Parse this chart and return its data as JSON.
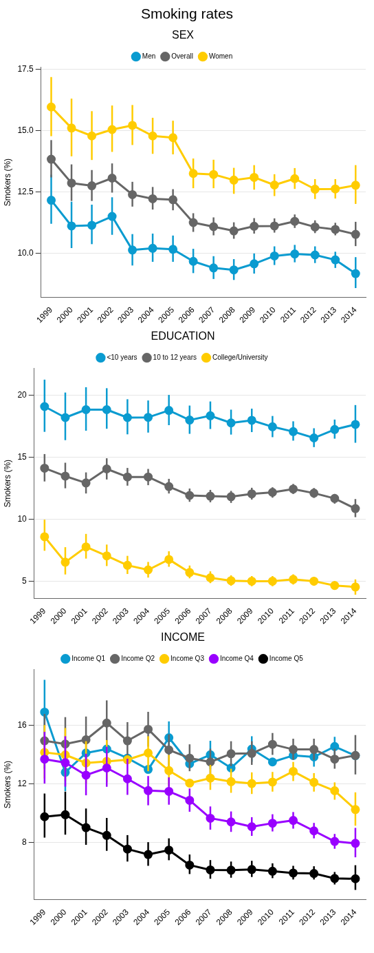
{
  "chart_data": [
    {
      "type": "line",
      "title": "Smoking rates",
      "subtitle": "SEX",
      "ylabel": "Smokers (%)",
      "categories": [
        "1999",
        "2000",
        "2001",
        "2002",
        "2003",
        "2004",
        "2005",
        "2006",
        "2007",
        "2008",
        "2009",
        "2010",
        "2011",
        "2012",
        "2013",
        "2014"
      ],
      "ylim": [
        8.2,
        17.6
      ],
      "yticks": [
        {
          "value": 10,
          "label": "10.0"
        },
        {
          "value": 12.5,
          "label": "12.5"
        },
        {
          "value": 15,
          "label": "15.0"
        },
        {
          "value": 17.5,
          "label": "17.5"
        }
      ],
      "grid": "y",
      "legend": "top",
      "marker": "circle",
      "series": [
        {
          "name": "Men",
          "color": "#0a9bd0",
          "values": [
            12.17,
            11.12,
            11.15,
            11.51,
            10.14,
            10.21,
            10.17,
            9.68,
            9.41,
            9.33,
            9.58,
            9.9,
            9.98,
            9.94,
            9.74,
            9.18
          ],
          "errors": [
            [
              11.21,
              13.21
            ],
            [
              10.22,
              12.11
            ],
            [
              10.38,
              11.99
            ],
            [
              10.76,
              12.29
            ],
            [
              9.51,
              10.79
            ],
            [
              9.66,
              10.81
            ],
            [
              9.66,
              10.73
            ],
            [
              9.2,
              10.19
            ],
            [
              8.96,
              9.89
            ],
            [
              8.92,
              9.77
            ],
            [
              9.18,
              10.0
            ],
            [
              9.53,
              10.29
            ],
            [
              9.64,
              10.35
            ],
            [
              9.61,
              10.29
            ],
            [
              9.41,
              10.07
            ],
            [
              8.59,
              9.85
            ]
          ]
        },
        {
          "name": "Overall",
          "color": "#666666",
          "values": [
            13.84,
            12.87,
            12.76,
            13.07,
            12.4,
            12.23,
            12.19,
            11.26,
            11.09,
            10.92,
            11.11,
            11.12,
            11.31,
            11.08,
            10.98,
            10.78
          ],
          "errors": [
            [
              13.1,
              14.62
            ],
            [
              12.14,
              13.63
            ],
            [
              12.14,
              13.4
            ],
            [
              12.48,
              13.67
            ],
            [
              11.91,
              12.92
            ],
            [
              11.79,
              12.71
            ],
            [
              11.76,
              12.62
            ],
            [
              10.88,
              11.64
            ],
            [
              10.74,
              11.47
            ],
            [
              10.6,
              11.27
            ],
            [
              10.81,
              11.44
            ],
            [
              10.85,
              11.43
            ],
            [
              11.04,
              11.59
            ],
            [
              10.83,
              11.35
            ],
            [
              10.74,
              11.25
            ],
            [
              10.3,
              11.29
            ]
          ]
        },
        {
          "name": "Women",
          "color": "#ffcc00",
          "values": [
            15.97,
            15.11,
            14.79,
            15.05,
            15.22,
            14.79,
            14.72,
            13.26,
            13.22,
            12.99,
            13.1,
            12.79,
            13.05,
            12.62,
            12.63,
            12.78
          ],
          "errors": [
            [
              14.78,
              17.19
            ],
            [
              13.96,
              16.31
            ],
            [
              13.81,
              15.8
            ],
            [
              14.14,
              16.03
            ],
            [
              14.42,
              16.05
            ],
            [
              14.06,
              15.53
            ],
            [
              14.04,
              15.41
            ],
            [
              12.66,
              13.87
            ],
            [
              12.66,
              13.82
            ],
            [
              12.43,
              13.49
            ],
            [
              12.6,
              13.6
            ],
            [
              12.34,
              13.23
            ],
            [
              12.63,
              13.48
            ],
            [
              12.22,
              13.03
            ],
            [
              12.24,
              13.03
            ],
            [
              12.02,
              13.6
            ]
          ]
        }
      ]
    },
    {
      "type": "line",
      "title": "EDUCATION",
      "ylabel": "Smokers (%)",
      "categories": [
        "1999",
        "2000",
        "2001",
        "2002",
        "2003",
        "2004",
        "2005",
        "2006",
        "2007",
        "2008",
        "2009",
        "2010",
        "2011",
        "2012",
        "2013",
        "2014"
      ],
      "ylim": [
        3.6,
        22.2
      ],
      "yticks": [
        5,
        10,
        15,
        20
      ],
      "grid": "y",
      "legend": "top",
      "marker": "circle",
      "series": [
        {
          "name": "<10 years",
          "color": "#0a9bd0",
          "values": [
            19.1,
            18.21,
            18.85,
            18.85,
            18.21,
            18.23,
            18.79,
            18.01,
            18.36,
            17.78,
            17.99,
            17.47,
            17.08,
            16.57,
            17.25,
            17.66
          ],
          "errors": [
            [
              17.06,
              21.27
            ],
            [
              16.39,
              20.23
            ],
            [
              17.15,
              20.66
            ],
            [
              17.31,
              20.58
            ],
            [
              16.86,
              19.69
            ],
            [
              17.0,
              19.59
            ],
            [
              17.6,
              20.04
            ],
            [
              16.9,
              19.18
            ],
            [
              17.29,
              19.51
            ],
            [
              16.84,
              18.85
            ],
            [
              17.04,
              18.93
            ],
            [
              16.63,
              18.34
            ],
            [
              16.35,
              17.91
            ],
            [
              15.83,
              17.35
            ],
            [
              16.51,
              18.05
            ],
            [
              16.18,
              19.22
            ]
          ]
        },
        {
          "name": "10 to 12 years",
          "color": "#666666",
          "values": [
            14.13,
            13.49,
            12.94,
            14.07,
            13.42,
            13.42,
            12.65,
            11.93,
            11.87,
            11.83,
            12.06,
            12.18,
            12.45,
            12.12,
            11.69,
            10.87
          ],
          "errors": [
            [
              13.06,
              15.27
            ],
            [
              12.51,
              14.57
            ],
            [
              12.09,
              13.79
            ],
            [
              13.22,
              14.93
            ],
            [
              12.72,
              14.15
            ],
            [
              12.76,
              14.07
            ],
            [
              12.09,
              13.27
            ],
            [
              11.42,
              12.49
            ],
            [
              11.38,
              12.38
            ],
            [
              11.33,
              12.3
            ],
            [
              11.6,
              12.55
            ],
            [
              11.75,
              12.59
            ],
            [
              12.05,
              12.86
            ],
            [
              11.73,
              12.53
            ],
            [
              11.27,
              12.05
            ],
            [
              10.18,
              11.64
            ]
          ]
        },
        {
          "name": "College/University",
          "color": "#ffcc00",
          "values": [
            8.6,
            6.55,
            7.78,
            7.06,
            6.3,
            5.93,
            6.77,
            5.72,
            5.29,
            5.06,
            5.02,
            5.02,
            5.16,
            5.02,
            4.67,
            4.55
          ],
          "errors": [
            [
              7.47,
              9.98
            ],
            [
              5.56,
              7.76
            ],
            [
              6.84,
              8.83
            ],
            [
              6.24,
              7.97
            ],
            [
              5.6,
              7.06
            ],
            [
              5.31,
              6.57
            ],
            [
              6.18,
              7.43
            ],
            [
              5.25,
              6.28
            ],
            [
              4.86,
              5.81
            ],
            [
              4.65,
              5.49
            ],
            [
              4.61,
              5.43
            ],
            [
              4.61,
              5.43
            ],
            [
              4.75,
              5.57
            ],
            [
              4.65,
              5.37
            ],
            [
              4.34,
              5.02
            ],
            [
              3.93,
              5.16
            ]
          ]
        }
      ]
    },
    {
      "type": "line",
      "title": "INCOME",
      "ylabel": "Smokers (%)",
      "categories": [
        "1999",
        "2000",
        "2001",
        "2002",
        "2003",
        "2004",
        "2005",
        "2006",
        "2007",
        "2008",
        "2009",
        "2010",
        "2011",
        "2012",
        "2013",
        "2014"
      ],
      "ylim": [
        4.1,
        19.8
      ],
      "yticks": [
        8,
        12,
        16
      ],
      "grid": "y",
      "legend": "top",
      "marker": "circle",
      "series": [
        {
          "name": "Income Q1",
          "color": "#0a9bd0",
          "values": [
            16.88,
            12.78,
            14.1,
            14.37,
            13.75,
            12.98,
            15.14,
            13.37,
            13.98,
            13.08,
            14.37,
            13.49,
            13.93,
            13.83,
            14.54,
            13.92
          ],
          "errors": [
            [
              14.7,
              19.08
            ],
            [
              11.5,
              14.05
            ],
            null,
            null,
            null,
            null,
            [
              14.0,
              16.25
            ],
            null,
            [
              13.0,
              14.93
            ],
            null,
            [
              13.5,
              15.24
            ],
            null,
            null,
            [
              13.17,
              14.5
            ],
            [
              13.9,
              15.2
            ],
            null
          ]
        },
        {
          "name": "Income Q2",
          "color": "#666666",
          "values": [
            14.93,
            14.71,
            15.0,
            16.14,
            14.93,
            15.71,
            14.31,
            13.75,
            13.49,
            14.05,
            14.07,
            14.69,
            14.34,
            14.34,
            13.68,
            13.93
          ],
          "errors": [
            [
              13.03,
              16.76
            ],
            [
              12.86,
              16.54
            ],
            [
              13.37,
              16.58
            ],
            [
              14.64,
              17.68
            ],
            [
              13.66,
              16.2
            ],
            [
              14.53,
              16.9
            ],
            [
              13.2,
              15.37
            ],
            [
              12.86,
              14.69
            ],
            [
              12.61,
              14.39
            ],
            [
              13.2,
              14.9
            ],
            [
              13.29,
              14.9
            ],
            [
              13.97,
              15.46
            ],
            [
              13.63,
              15.07
            ],
            [
              13.63,
              15.07
            ],
            [
              13.03,
              14.39
            ],
            [
              12.64,
              15.32
            ]
          ]
        },
        {
          "name": "Income Q3",
          "color": "#ffcc00",
          "values": [
            14.14,
            13.97,
            13.42,
            13.53,
            13.64,
            14.1,
            12.9,
            12.05,
            12.39,
            12.15,
            12.02,
            12.12,
            12.85,
            12.1,
            11.53,
            10.25
          ],
          "errors": [
            [
              12.36,
              16.0
            ],
            [
              12.19,
              15.8
            ],
            [
              12.02,
              14.9
            ],
            [
              12.1,
              14.98
            ],
            null,
            [
              12.86,
              15.24
            ],
            [
              11.85,
              13.97
            ],
            null,
            [
              11.59,
              13.29
            ],
            [
              11.39,
              13.03
            ],
            [
              11.31,
              12.78
            ],
            [
              11.47,
              12.81
            ],
            [
              12.19,
              13.49
            ],
            [
              11.47,
              12.73
            ],
            [
              10.92,
              12.1
            ],
            [
              9.15,
              11.42
            ]
          ]
        },
        {
          "name": "Income Q4",
          "color": "#9900ff",
          "values": [
            13.68,
            13.44,
            12.59,
            13.08,
            12.34,
            11.54,
            11.49,
            10.88,
            9.66,
            9.41,
            9.08,
            9.32,
            9.51,
            8.8,
            8.08,
            7.95
          ],
          "errors": [
            [
              12.02,
              15.54
            ],
            [
              11.81,
              15.24
            ],
            [
              11.22,
              14.05
            ],
            [
              11.8,
              14.53
            ],
            [
              11.25,
              13.71
            ],
            [
              10.54,
              12.53
            ],
            [
              10.58,
              12.44
            ],
            [
              10.1,
              11.68
            ],
            [
              8.88,
              10.46
            ],
            [
              8.73,
              10.12
            ],
            [
              8.46,
              9.73
            ],
            [
              8.76,
              9.93
            ],
            [
              8.95,
              10.08
            ],
            [
              8.29,
              9.34
            ],
            [
              7.58,
              8.59
            ],
            [
              7.0,
              9.0
            ]
          ]
        },
        {
          "name": "Income Q5",
          "color": "#000000",
          "values": [
            9.76,
            9.9,
            9.02,
            8.49,
            7.56,
            7.19,
            7.49,
            6.47,
            6.14,
            6.12,
            6.17,
            6.05,
            5.93,
            5.9,
            5.56,
            5.54
          ],
          "errors": [
            [
              8.34,
              11.34
            ],
            [
              8.54,
              11.47
            ],
            [
              7.85,
              10.32
            ],
            [
              7.44,
              9.68
            ],
            [
              6.71,
              8.51
            ],
            [
              6.42,
              8.03
            ],
            [
              6.8,
              8.29
            ],
            [
              5.86,
              7.19
            ],
            [
              5.54,
              6.81
            ],
            [
              5.61,
              6.71
            ],
            [
              5.66,
              6.76
            ],
            [
              5.58,
              6.59
            ],
            [
              5.49,
              6.42
            ],
            [
              5.49,
              6.39
            ],
            [
              5.15,
              6.0
            ],
            [
              4.78,
              6.46
            ]
          ]
        }
      ]
    }
  ]
}
